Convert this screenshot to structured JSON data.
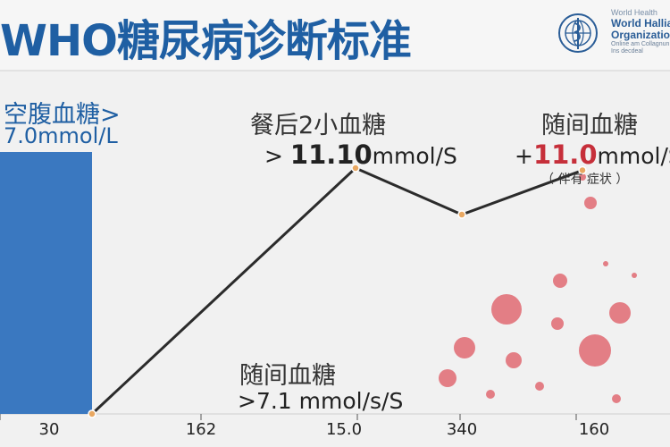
{
  "header": {
    "title": "WHO糖尿病诊断标准",
    "org_lines": [
      "World Health",
      "World Halliah",
      "Organization",
      "Online am Collagnun",
      "Ins decdeal"
    ]
  },
  "labels": {
    "fasting_name": "空腹血糖",
    "fasting_symbol": ">",
    "fasting_value": "7.0mmol/L",
    "postprandial_name": "餐后2小血糖",
    "postprandial_symbol": ">",
    "postprandial_value": "11.10",
    "postprandial_unit": "mmol/S",
    "random_name": "随间血糖",
    "random_symbol": "+",
    "random_value": "11.0",
    "random_unit": "mmol/S",
    "random_note": "（ 伴有   症状 ）",
    "low_name": "随间血糖",
    "low_value": ">7.1 mmol/s/S"
  },
  "chart_data": {
    "type": "line",
    "x_ticks": [
      "30",
      "162",
      "15.0",
      "340",
      "160"
    ],
    "bar": {
      "value": 7.0
    },
    "line_points": [
      {
        "y": 0
      },
      {
        "y": 11.1
      },
      {
        "y": 9.0
      },
      {
        "y": 11.0
      }
    ],
    "colors": {
      "bar": "#3a78c0",
      "line": "#2b2b2b",
      "point": "#e9a862",
      "bubbles": "#e06a72",
      "title": "#1f5fa3"
    }
  }
}
